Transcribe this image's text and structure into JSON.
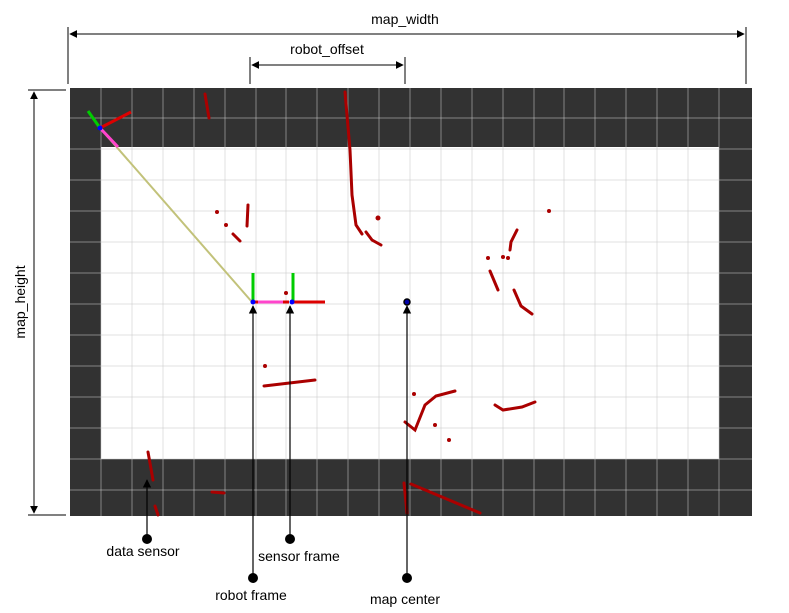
{
  "dimensions": {
    "map_width": "map_width",
    "robot_offset": "robot_offset",
    "map_height": "map_height"
  },
  "annotations": {
    "data_sensor": "data sensor",
    "robot_frame": "robot frame",
    "sensor_frame": "sensor frame",
    "map_center": "map center"
  },
  "colors": {
    "occupied_border": "#323232",
    "free_space": "#ffffff",
    "grid_lines": "#c8c8c8",
    "scan_points": "#aa0000",
    "ray": "#c2c27a",
    "axis_x": "#dd0000",
    "axis_y": "#00cc00",
    "axis_z": "#0000ff",
    "direction_arrow": "#ff44cc"
  }
}
